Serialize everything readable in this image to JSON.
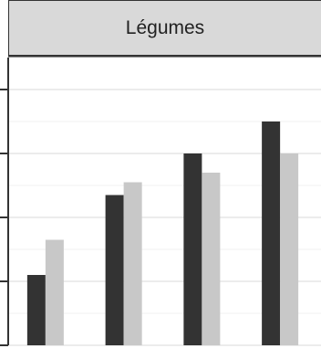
{
  "chart_data": {
    "type": "bar",
    "facet_title": "Légumes",
    "categories": [
      "",
      "",
      "",
      ""
    ],
    "series": [
      {
        "values": [
          1.1,
          2.35,
          3.0,
          3.5
        ],
        "color": "#333333"
      },
      {
        "values": [
          1.65,
          2.55,
          2.7,
          3.0
        ],
        "color": "#c8c8c8"
      }
    ],
    "ylim": [
      0,
      4.5
    ],
    "y_major_ticks": [
      0,
      1,
      2,
      3,
      4
    ],
    "y_minor_ticks": [
      0.5,
      1.5,
      2.5,
      3.5,
      4.0,
      4.5
    ],
    "grid": true,
    "background": "#ffffff",
    "panel_header_color": "#d9d9d9"
  }
}
